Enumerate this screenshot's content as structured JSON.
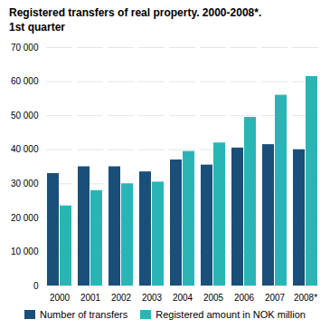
{
  "chart_data": {
    "type": "bar",
    "title": "Registered transfers of real property. 2000-2008*.",
    "subtitle": "1st quarter",
    "categories": [
      "2000",
      "2001",
      "2002",
      "2003",
      "2004",
      "2005",
      "2006",
      "2007",
      "2008*"
    ],
    "series": [
      {
        "name": "Number of transfers",
        "color": "#1a4f7a",
        "values": [
          33000,
          35000,
          35000,
          33500,
          37000,
          35500,
          40500,
          41500,
          40000
        ]
      },
      {
        "name": "Registered amount in NOK million",
        "color": "#2ab5b5",
        "values": [
          23500,
          28000,
          30000,
          30500,
          39500,
          42000,
          49500,
          56000,
          61500
        ]
      }
    ],
    "ylim": [
      0,
      70000
    ],
    "yticks": [
      0,
      {
        "value": 10000,
        "label": "10 000"
      },
      {
        "value": 20000,
        "label": "20 000"
      },
      {
        "value": 30000,
        "label": "30 000"
      },
      {
        "value": 40000,
        "label": "40 000"
      },
      {
        "value": 50000,
        "label": "50 000"
      },
      {
        "value": 60000,
        "label": "60 000"
      },
      {
        "value": 70000,
        "label": "70 000"
      }
    ],
    "grid": true,
    "legend": "bottom"
  }
}
